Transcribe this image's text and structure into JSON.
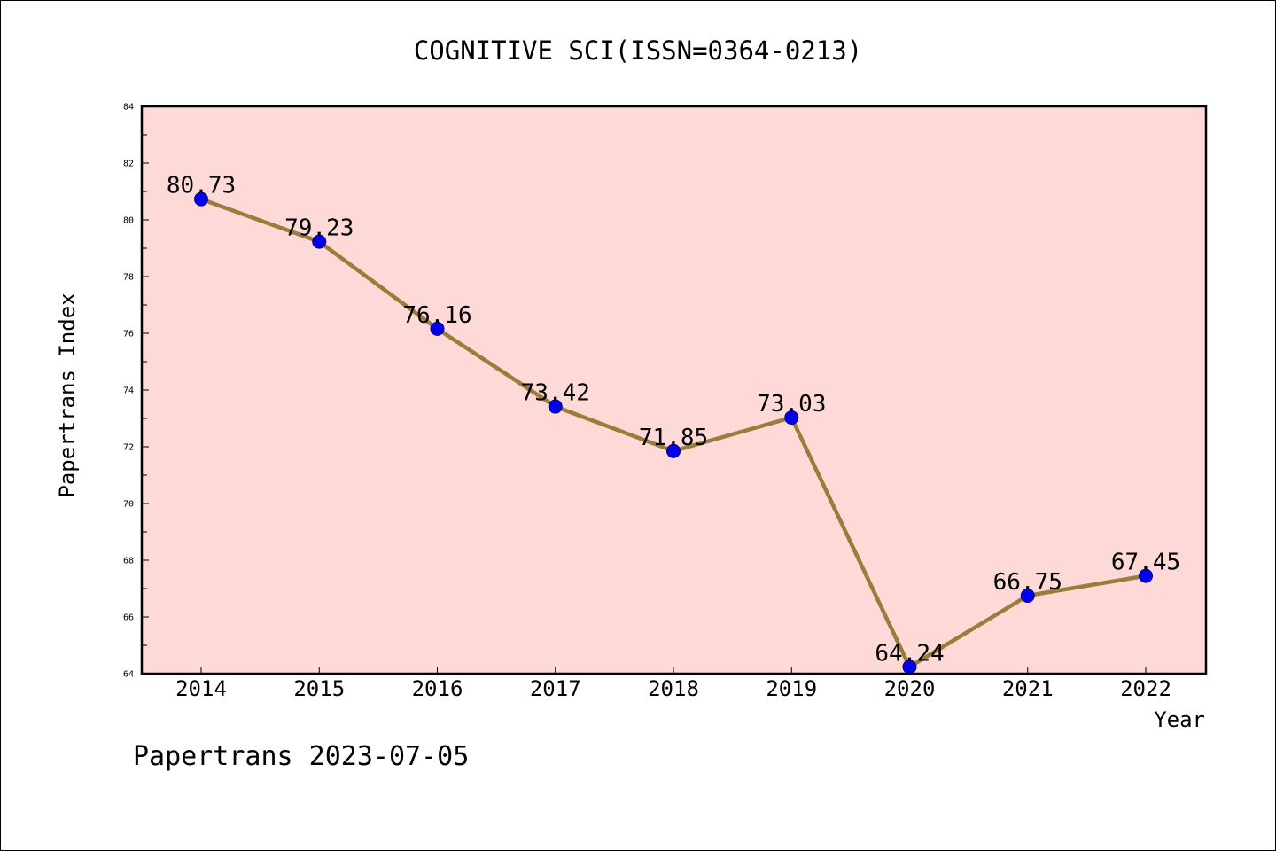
{
  "chart_data": {
    "type": "line",
    "title": "COGNITIVE SCI(ISSN=0364-0213)",
    "xlabel": "Year",
    "ylabel": "Papertrans Index",
    "x": [
      "2014",
      "2015",
      "2016",
      "2017",
      "2018",
      "2019",
      "2020",
      "2021",
      "2022"
    ],
    "series": [
      {
        "values": [
          80.73,
          79.23,
          76.16,
          73.42,
          71.85,
          73.03,
          64.24,
          66.75,
          67.45
        ],
        "labels": [
          "80.73",
          "79.23",
          "76.16",
          "73.42",
          "71.85",
          "73.03",
          "64.24",
          "66.75",
          "67.45"
        ]
      }
    ],
    "ylim": [
      64,
      84
    ],
    "yticks": [
      "64",
      "66",
      "68",
      "70",
      "72",
      "74",
      "76",
      "78",
      "80",
      "82",
      "84"
    ],
    "grid": false,
    "colors": {
      "plot_background": "#fddad7",
      "line": "#9a7d3a",
      "marker": "#0000ee",
      "marker_edge": "#000080"
    }
  },
  "footer": {
    "text": "Papertrans 2023-07-05"
  }
}
